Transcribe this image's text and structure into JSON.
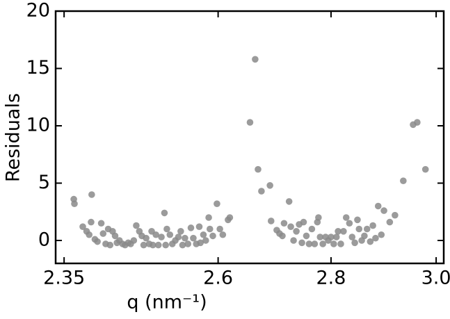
{
  "chart_data": {
    "type": "scatter",
    "xlabel": "q (nm⁻¹)",
    "ylabel": "Residuals",
    "x": [
      2.365,
      2.366,
      2.393,
      2.379,
      2.385,
      2.392,
      2.389,
      2.398,
      2.402,
      2.408,
      2.411,
      2.415,
      2.419,
      2.422,
      2.426,
      2.43,
      2.433,
      2.437,
      2.442,
      2.446,
      2.451,
      2.455,
      2.46,
      2.464,
      2.469,
      2.473,
      2.476,
      2.48,
      2.485,
      2.489,
      2.491,
      2.496,
      2.5,
      2.505,
      2.51,
      2.512,
      2.514,
      2.519,
      2.523,
      2.528,
      2.533,
      2.537,
      2.54,
      2.544,
      2.549,
      2.554,
      2.558,
      2.563,
      2.568,
      2.57,
      2.575,
      2.579,
      2.584,
      2.586,
      2.591,
      2.598,
      2.603,
      2.608,
      2.617,
      2.62,
      2.655,
      2.664,
      2.669,
      2.675,
      2.69,
      2.692,
      2.702,
      2.707,
      2.712,
      2.715,
      2.724,
      2.727,
      2.732,
      2.737,
      2.742,
      2.747,
      2.75,
      2.755,
      2.76,
      2.765,
      2.77,
      2.775,
      2.777,
      2.78,
      2.785,
      2.79,
      2.795,
      2.8,
      2.805,
      2.81,
      2.813,
      2.818,
      2.823,
      2.828,
      2.834,
      2.839,
      2.844,
      2.849,
      2.852,
      2.857,
      2.862,
      2.867,
      2.873,
      2.878,
      2.883,
      2.888,
      2.894,
      2.899,
      2.91,
      2.92,
      2.936,
      2.955,
      2.963,
      2.979
    ],
    "values": [
      3.6,
      3.2,
      4.0,
      1.2,
      0.8,
      1.6,
      0.5,
      0.1,
      -0.1,
      1.5,
      0.6,
      -0.3,
      1.0,
      -0.4,
      0.8,
      0.4,
      -0.2,
      0.0,
      -0.3,
      -0.4,
      -0.2,
      -0.3,
      0.0,
      1.3,
      0.8,
      0.4,
      -0.4,
      0.2,
      -0.3,
      0.8,
      -0.4,
      0.5,
      -0.4,
      0.3,
      2.4,
      -0.4,
      1.0,
      0.5,
      -0.3,
      0.0,
      0.3,
      0.8,
      -0.4,
      0.2,
      -0.3,
      1.1,
      0.2,
      -0.3,
      1.2,
      -0.2,
      0.5,
      0.0,
      2.0,
      1.0,
      0.4,
      3.2,
      1.0,
      0.5,
      1.8,
      2.0,
      10.3,
      15.8,
      6.2,
      4.3,
      4.8,
      1.7,
      0.9,
      0.6,
      0.4,
      1.5,
      3.4,
      1.2,
      0.0,
      0.8,
      1.4,
      -0.2,
      1.6,
      0.4,
      -0.3,
      1.0,
      -0.3,
      1.6,
      2.0,
      0.3,
      -0.3,
      0.3,
      0.0,
      0.3,
      -0.3,
      0.3,
      0.8,
      -0.3,
      0.8,
      2.0,
      1.5,
      0.3,
      -0.2,
      1.8,
      1.0,
      0.0,
      0.4,
      1.0,
      -0.1,
      1.3,
      0.2,
      3.0,
      0.5,
      2.6,
      1.6,
      2.2,
      5.2,
      10.1,
      10.3,
      6.2
    ],
    "color": "#8a8a8a",
    "xscale": "log",
    "xlim": [
      2.337,
      3.015
    ],
    "xticks": [
      2.35,
      2.6,
      2.8,
      {
        "value": 3,
        "label": "3.0"
      }
    ],
    "ylim": [
      -2,
      20
    ],
    "yticks": [
      0,
      5,
      10,
      15,
      20
    ]
  }
}
